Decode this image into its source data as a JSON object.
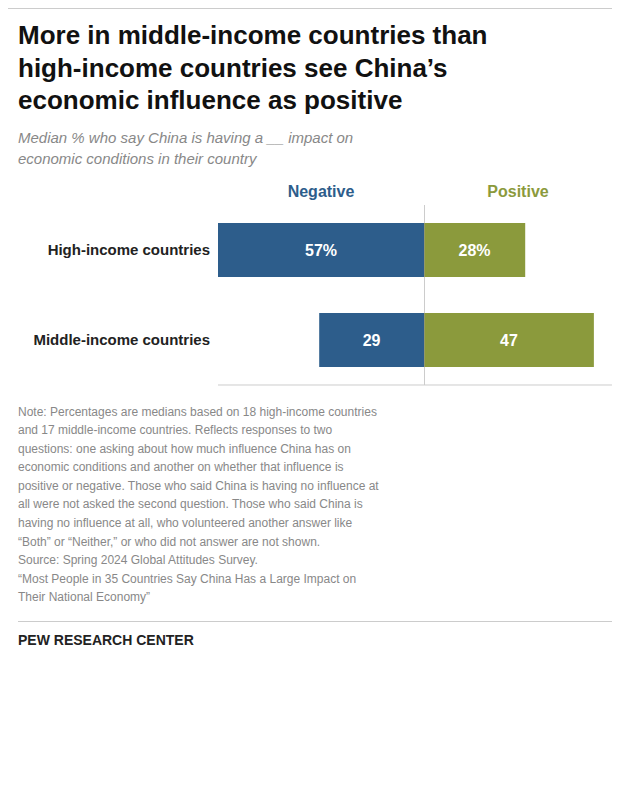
{
  "title": "More in middle-income countries than\nhigh-income countries see China’s\neconomic influence as positive",
  "subtitle": "Median % who say China is having a __ impact on\neconomic conditions in their country",
  "annotations": [
    "Note: Percentages are medians based on 18 high-income countries\nand 17 middle-income countries. Reflects responses to two\nquestions: one asking about how much influence China has on\neconomic conditions and another on whether that influence is\npositive or negative. Those who said China is having no influence at\nall were not asked the second question. Those who said China is\nhaving no influence at all, who volunteered another answer like\n“Both” or “Neither,” or who did not answer are not shown.\nSource: Spring 2024 Global Attitudes Survey.\n“Most People in 35 Countries Say China Has a Large Impact on\nTheir National Economy”",
    "PEW RESEARCH CENTER"
  ],
  "chart_data": [
    {
      "type": "bar",
      "title": "Negative",
      "orientation": "horizontal",
      "categories": [
        "High-income countries",
        "Middle-income countries"
      ],
      "values": [
        57,
        29
      ],
      "value_labels": [
        "57%",
        "29"
      ],
      "color": "#2D5D8B",
      "xlim": [
        0,
        57
      ],
      "data_labels": true,
      "tick_labels": "y",
      "grid": false
    },
    {
      "type": "bar",
      "title": "Positive",
      "orientation": "horizontal",
      "categories": [
        "High-income countries",
        "Middle-income countries"
      ],
      "values": [
        28,
        47
      ],
      "value_labels": [
        "28%",
        "47"
      ],
      "color": "#8B9A3C",
      "xlim": [
        0,
        52
      ],
      "data_labels": true,
      "tick_labels": false,
      "grid": false
    }
  ]
}
